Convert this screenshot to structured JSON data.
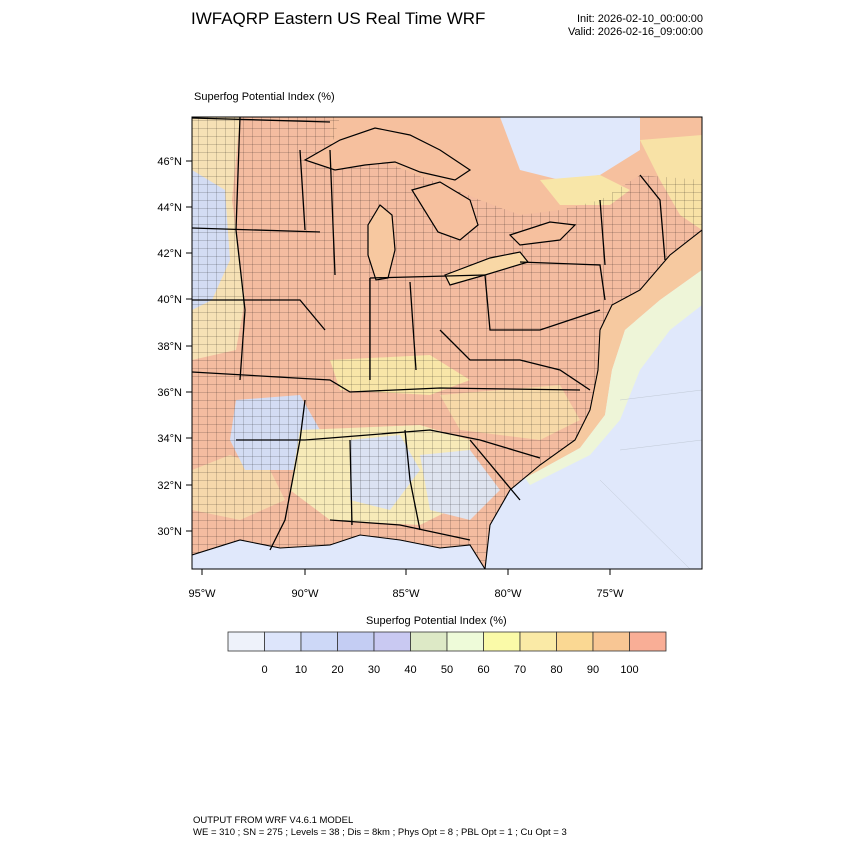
{
  "header": {
    "title": "IWFAQRP Eastern US Real Time WRF",
    "init": "Init: 2026-02-10_00:00:00",
    "valid": "Valid: 2026-02-16_09:00:00"
  },
  "plot": {
    "label": "Superfog Potential Index   (%)",
    "lat_ticks": [
      "46°N",
      "44°N",
      "42°N",
      "40°N",
      "38°N",
      "36°N",
      "34°N",
      "32°N",
      "30°N"
    ],
    "lon_ticks": [
      "95°W",
      "90°W",
      "85°W",
      "80°W",
      "75°W"
    ]
  },
  "colorbar": {
    "title": "Superfog Potential Index  (%)",
    "labels": [
      "0",
      "10",
      "20",
      "30",
      "40",
      "50",
      "60",
      "70",
      "80",
      "90",
      "100"
    ],
    "colors": [
      "#eef2fa",
      "#dde5fb",
      "#cdd8f7",
      "#c4cdf3",
      "#c9c9f2",
      "#dde9c6",
      "#eefbd9",
      "#fafaa8",
      "#faeaa6",
      "#fad893",
      "#f8c694",
      "#f9ae96"
    ]
  },
  "footer": {
    "line1": "OUTPUT FROM WRF V4.6.1 MODEL",
    "line2": "WE = 310 ; SN = 275 ; Levels = 38 ; Dis = 8km ; Phys Opt = 8 ; PBL Opt = 1 ; Cu Opt = 3"
  }
}
